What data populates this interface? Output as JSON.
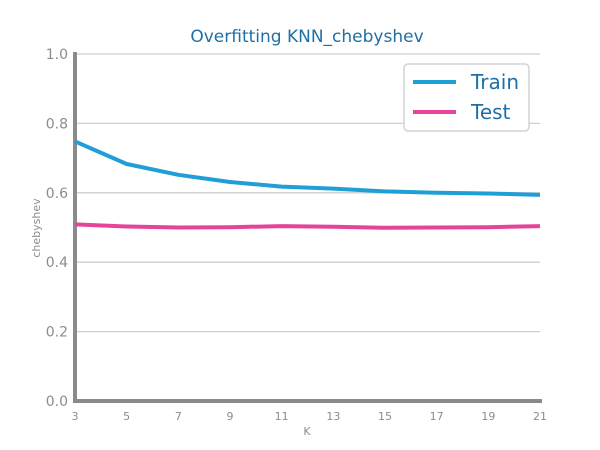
{
  "chart_data": {
    "type": "line",
    "title": "Overfitting KNN_chebyshev",
    "xlabel": "K",
    "ylabel": "chebyshev",
    "x": [
      3,
      5,
      7,
      9,
      11,
      13,
      15,
      17,
      19,
      21
    ],
    "xlim": [
      3,
      21
    ],
    "ylim": [
      0,
      1
    ],
    "yticks": [
      "0.0",
      "0.2",
      "0.4",
      "0.6",
      "0.8",
      "1.0"
    ],
    "xticks": [
      "3",
      "5",
      "7",
      "9",
      "11",
      "13",
      "15",
      "17",
      "19",
      "21"
    ],
    "grid": "horizontal",
    "legend_position": "top-right",
    "series": [
      {
        "name": "Train",
        "color": "#1f9fd6",
        "values": [
          0.748,
          0.683,
          0.652,
          0.631,
          0.618,
          0.612,
          0.604,
          0.6,
          0.598,
          0.594
        ]
      },
      {
        "name": "Test",
        "color": "#e5449a",
        "values": [
          0.509,
          0.503,
          0.5,
          0.501,
          0.504,
          0.502,
          0.499,
          0.5,
          0.501,
          0.504
        ]
      }
    ]
  }
}
